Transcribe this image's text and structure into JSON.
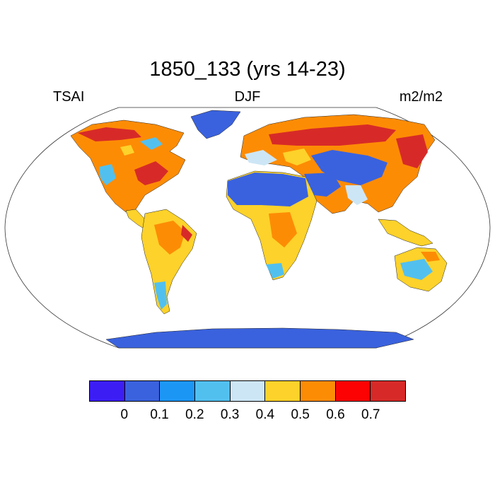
{
  "title": "1850_133 (yrs 14-23)",
  "left_label": "TSAI",
  "center_label": "DJF",
  "right_label": "m2/m2",
  "colorbar": {
    "colors": [
      "#3c1ef5",
      "#3a62de",
      "#1c96f5",
      "#52c0ef",
      "#cde6f6",
      "#fdd22a",
      "#fd8c05",
      "#fc0202",
      "#d72a28"
    ],
    "ticks": [
      "0",
      "0.1",
      "0.2",
      "0.3",
      "0.4",
      "0.5",
      "0.6",
      "0.7"
    ]
  }
}
